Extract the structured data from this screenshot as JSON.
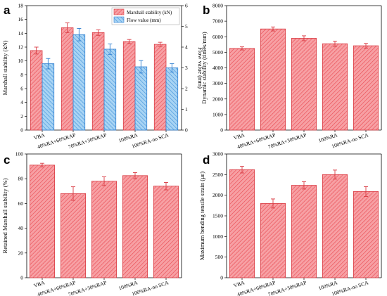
{
  "colors": {
    "red_fill": "#f7a0a4",
    "red_hatch": "#e8484f",
    "red_edge": "#d93c44",
    "blue_fill": "#a8d4f4",
    "blue_hatch": "#3d8fd8",
    "blue_edge": "#2f7fd0",
    "right_axis": "#2222cc"
  },
  "chart_data": [
    {
      "id": "a",
      "type": "bar",
      "panel_label": "a",
      "categories": [
        "VBA",
        "40%RA+60%RAP",
        "70%RA+30%RAP",
        "100%RA",
        "100%RA-no SCA"
      ],
      "series": [
        {
          "name": "Marshall stability (kN)",
          "values": [
            11.5,
            14.8,
            14.1,
            12.8,
            12.4
          ],
          "errors": [
            0.5,
            0.7,
            0.4,
            0.3,
            0.3
          ],
          "axis": "left",
          "color": "red"
        },
        {
          "name": "Flow value (mm)",
          "values": [
            3.2,
            4.6,
            3.9,
            3.05,
            3.0
          ],
          "errors": [
            0.25,
            0.3,
            0.25,
            0.3,
            0.2
          ],
          "axis": "right",
          "color": "blue"
        }
      ],
      "ylabel": "Marshall stability (kN)",
      "y2label": "Flow value (mm)",
      "ylim": [
        0,
        18
      ],
      "yticks": [
        0,
        2,
        4,
        6,
        8,
        10,
        12,
        14,
        16,
        18
      ],
      "y2lim": [
        0,
        6
      ],
      "y2ticks": [
        0,
        1,
        2,
        3,
        4,
        5,
        6
      ],
      "legend": "top-right"
    },
    {
      "id": "b",
      "type": "bar",
      "panel_label": "b",
      "categories": [
        "VBA",
        "40%RA+60%RAP",
        "70%RA+30%RAP",
        "100%RA",
        "100%RA-no SCA"
      ],
      "values": [
        5250,
        6500,
        5900,
        5550,
        5420
      ],
      "errors": [
        100,
        130,
        160,
        170,
        150
      ],
      "ylabel": "Dynamic stability (times/mm)",
      "ylim": [
        0,
        8000
      ],
      "yticks": [
        0,
        1000,
        2000,
        3000,
        4000,
        5000,
        6000,
        7000,
        8000
      ]
    },
    {
      "id": "c",
      "type": "bar",
      "panel_label": "c",
      "categories": [
        "VBA",
        "40%RA+60%RAP",
        "70%RA+30%RAP",
        "100%RA",
        "100%RA-no SCA"
      ],
      "values": [
        91,
        68,
        78,
        82.5,
        74
      ],
      "errors": [
        1.5,
        5.5,
        3.5,
        2.5,
        3
      ],
      "ylabel": "Retained Marshall stability (%)",
      "ylim": [
        0,
        100
      ],
      "yticks": [
        0,
        20,
        40,
        60,
        80,
        100
      ]
    },
    {
      "id": "d",
      "type": "bar",
      "panel_label": "d",
      "categories": [
        "VBA",
        "40%RA+60%RAP",
        "70%RA+30%RAP",
        "100%RA",
        "100%RA-no SCA"
      ],
      "values": [
        2620,
        1800,
        2240,
        2500,
        2090
      ],
      "errors": [
        80,
        110,
        90,
        110,
        120
      ],
      "ylabel": "Maximum bending tensile strain (με)",
      "ylim": [
        0,
        3000
      ],
      "yticks": [
        0,
        500,
        1000,
        1500,
        2000,
        2500,
        3000
      ]
    }
  ]
}
